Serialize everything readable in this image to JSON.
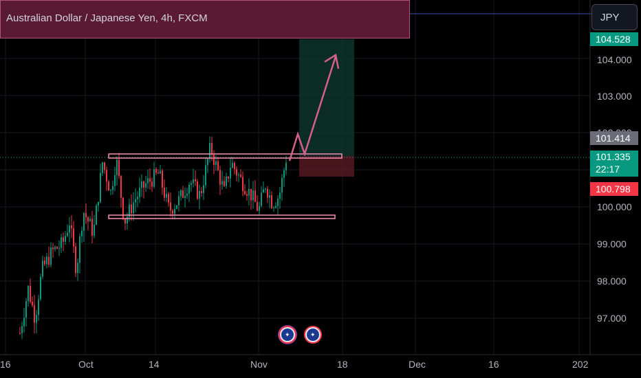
{
  "header": {
    "title": "Australian Dollar / Japanese Yen, 4h, FXCM",
    "currency_button": "JPY"
  },
  "price_axis": {
    "ticks": [
      "104.000",
      "103.000",
      "100.000",
      "99.000",
      "98.000",
      "97.000"
    ],
    "target_label": "104.528",
    "prev_close_label": "101.414",
    "last_price_label": "101.335",
    "countdown": "22:17",
    "stop_label": "100.798",
    "colors": {
      "target": "#089981",
      "prev_close": "#6a6d78",
      "last": "#089981",
      "stop": "#f23645"
    }
  },
  "time_axis": {
    "ticks": [
      "16",
      "Oct",
      "14",
      "Nov",
      "18",
      "Dec",
      "16",
      "202"
    ]
  },
  "chart_data": {
    "type": "candlestick",
    "title": "Australian Dollar / Japanese Yen, 4h, FXCM",
    "ylim": [
      96.5,
      105
    ],
    "x_ticks": [
      "16",
      "Oct",
      "14",
      "Nov",
      "18",
      "Dec",
      "16",
      "202"
    ],
    "y_ticks": [
      97,
      98,
      99,
      100,
      103,
      104
    ],
    "range_resistance": 101.414,
    "range_support": 99.75,
    "position": {
      "entry": 101.414,
      "target": 104.528,
      "stop": 100.798
    },
    "projection": [
      101.335,
      102.05,
      101.335,
      103.85
    ],
    "last_price": 101.335,
    "up_color": "#089981",
    "down_color": "#f23645",
    "grid": true
  },
  "events": {
    "icons": [
      "australia-flag-icon",
      "australia-flag-icon"
    ]
  }
}
